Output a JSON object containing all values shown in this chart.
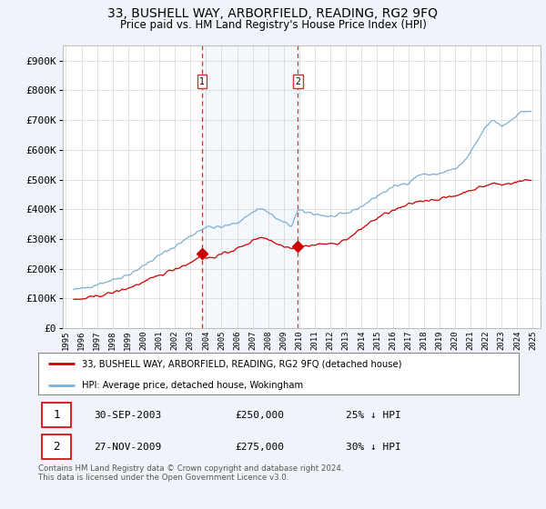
{
  "title": "33, BUSHELL WAY, ARBORFIELD, READING, RG2 9FQ",
  "subtitle": "Price paid vs. HM Land Registry's House Price Index (HPI)",
  "hpi_color": "#7bafd4",
  "price_color": "#cc0000",
  "vline_color": "#cc3333",
  "sale1_year": 2003.75,
  "sale1_price": 250000,
  "sale2_year": 2009.9,
  "sale2_price": 275000,
  "legend_label1": "33, BUSHELL WAY, ARBORFIELD, READING, RG2 9FQ (detached house)",
  "legend_label2": "HPI: Average price, detached house, Wokingham",
  "table_row1": [
    "1",
    "30-SEP-2003",
    "£250,000",
    "25% ↓ HPI"
  ],
  "table_row2": [
    "2",
    "27-NOV-2009",
    "£275,000",
    "30% ↓ HPI"
  ],
  "footnote": "Contains HM Land Registry data © Crown copyright and database right 2024.\nThis data is licensed under the Open Government Licence v3.0.",
  "background_color": "#f0f4fa",
  "plot_bg_color": "#ffffff",
  "grid_color": "#cccccc",
  "yticks": [
    0,
    100000,
    200000,
    300000,
    400000,
    500000,
    600000,
    700000,
    800000,
    900000
  ],
  "ytick_labels": [
    "£0",
    "£100K",
    "£200K",
    "£300K",
    "£400K",
    "£500K",
    "£600K",
    "£700K",
    "£800K",
    "£900K"
  ]
}
